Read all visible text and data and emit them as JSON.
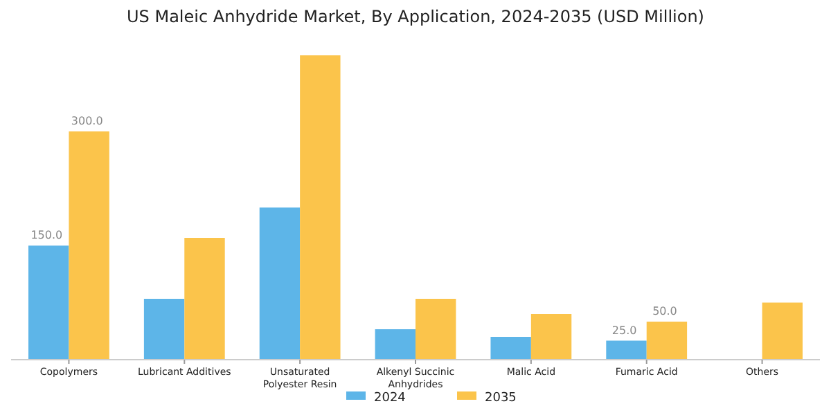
{
  "chart_data": {
    "type": "bar",
    "title": "US Maleic Anhydride Market, By Application, 2024-2035 (USD Million)",
    "categories": [
      "Copolymers",
      "Lubricant Additives",
      "Unsaturated Polyester Resin",
      "Alkenyl Succinic Anhydrides",
      "Malic Acid",
      "Fumaric Acid",
      "Others"
    ],
    "series": [
      {
        "name": "2024",
        "color": "#5db5e8",
        "values": [
          150,
          80,
          200,
          40,
          30,
          25,
          null
        ],
        "value_labels": [
          "150.0",
          null,
          null,
          null,
          null,
          "25.0",
          null
        ]
      },
      {
        "name": "2035",
        "color": "#fbc44b",
        "values": [
          300,
          160,
          400,
          80,
          60,
          50,
          75
        ],
        "value_labels": [
          "300.0",
          null,
          null,
          null,
          null,
          "50.0",
          null
        ]
      }
    ],
    "legend": "bottom"
  }
}
